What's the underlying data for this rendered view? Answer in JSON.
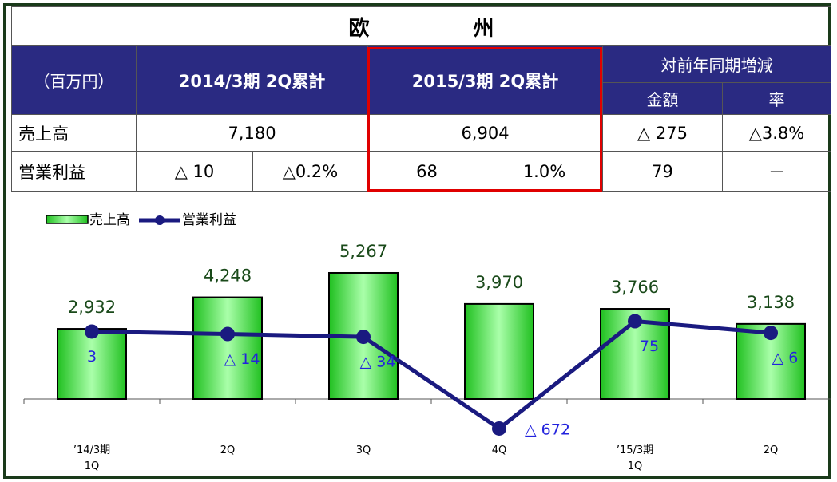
{
  "table": {
    "title": "欧　　　　　州",
    "header": [
      "（百万円）",
      "2014/3期 2Q累計",
      "2015/3期 2Q累計",
      "対前年同期増減",
      "金額",
      "率"
    ],
    "rows": [
      [
        "売上高",
        "7,180",
        "6,904",
        "△ 275",
        "△3.8%"
      ],
      [
        "営業利益",
        "△ 10",
        "△0.2%",
        "68",
        "1.0%",
        "79",
        "－"
      ]
    ]
  },
  "chart_data": {
    "type": "bar_line",
    "categories": [
      "’14/3期\n1Q",
      "2Q",
      "3Q",
      "4Q",
      "’15/3期\n1Q",
      "2Q"
    ],
    "series": [
      {
        "name": "売上高",
        "color": "#33e033",
        "values": [
          2932,
          4248,
          5267,
          3970,
          3766,
          3138
        ],
        "value_labels": [
          "2,932",
          "4,248",
          "5,267",
          "3,970",
          "3,766",
          "3,138"
        ]
      },
      {
        "name": "営業利益",
        "color": "#1a1a80",
        "axis": "y2",
        "values": [
          3,
          -14,
          -34,
          -672,
          75,
          -6
        ],
        "value_labels": [
          "3",
          "△ 14",
          "△ 34",
          "△ 672",
          "75",
          "△ 6"
        ]
      }
    ],
    "ylim": [
      -2000,
      7000
    ],
    "y2lim": [
      -800,
      700
    ]
  }
}
